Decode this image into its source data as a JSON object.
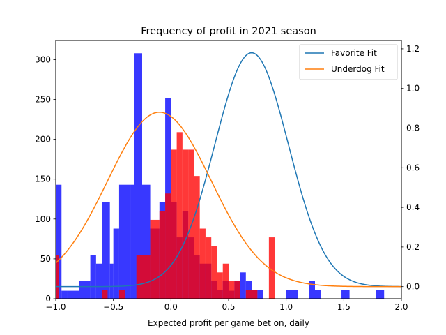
{
  "chart_data": {
    "type": "bar",
    "title": "Frequency of profit in 2021 season",
    "xlabel": "Expected profit per game bet on, daily",
    "ylabel": "",
    "xlim": [
      -1.0,
      2.0
    ],
    "ylim": [
      0,
      324
    ],
    "y2lim": [
      -0.061,
      1.242
    ],
    "x_ticks": [
      "−1.0",
      "−0.5",
      "0.0",
      "0.5",
      "1.0",
      "1.5",
      "2.0"
    ],
    "y_ticks": [
      "0",
      "50",
      "100",
      "150",
      "200",
      "250",
      "300"
    ],
    "y2_ticks": [
      "0.0",
      "0.2",
      "0.4",
      "0.6",
      "0.8",
      "1.0",
      "1.2"
    ],
    "x_tick_values": [
      -1.0,
      -0.5,
      0.0,
      0.5,
      1.0,
      1.5,
      2.0
    ],
    "y_tick_values": [
      0,
      50,
      100,
      150,
      200,
      250,
      300
    ],
    "y2_tick_values": [
      0.0,
      0.2,
      0.4,
      0.6,
      0.8,
      1.0,
      1.2
    ],
    "colors": {
      "favorite_hist": "#0000ff",
      "underdog_hist": "#ff0000",
      "favorite_fit": "#1f77b4",
      "underdog_fit": "#ff7f0e"
    },
    "legend_position": "top-right",
    "histograms": [
      {
        "bins": [
          [
            -1.0,
            -0.95,
            143
          ],
          [
            -0.95,
            -0.9,
            10
          ],
          [
            -0.9,
            -0.8,
            10
          ],
          [
            -0.8,
            -0.7,
            22
          ],
          [
            -0.7,
            -0.65,
            55
          ],
          [
            -0.65,
            -0.6,
            44
          ],
          [
            -0.6,
            -0.53,
            121
          ],
          [
            -0.53,
            -0.5,
            44
          ],
          [
            -0.5,
            -0.45,
            88
          ],
          [
            -0.45,
            -0.35,
            143
          ],
          [
            -0.35,
            -0.32,
            143
          ],
          [
            -0.32,
            -0.25,
            308
          ],
          [
            -0.25,
            -0.18,
            143
          ],
          [
            -0.18,
            -0.1,
            88
          ],
          [
            -0.1,
            -0.05,
            121
          ],
          [
            -0.05,
            0.0,
            252
          ],
          [
            0.0,
            0.05,
            121
          ],
          [
            0.05,
            0.1,
            77
          ],
          [
            0.1,
            0.15,
            110
          ],
          [
            0.15,
            0.2,
            77
          ],
          [
            0.2,
            0.25,
            55
          ],
          [
            0.25,
            0.35,
            44
          ],
          [
            0.35,
            0.4,
            22
          ],
          [
            0.4,
            0.45,
            11
          ],
          [
            0.45,
            0.5,
            22
          ],
          [
            0.5,
            0.55,
            10
          ],
          [
            0.55,
            0.6,
            22
          ],
          [
            0.6,
            0.65,
            33
          ],
          [
            0.65,
            0.7,
            22
          ],
          [
            0.7,
            0.75,
            11
          ],
          [
            0.75,
            0.8,
            11
          ],
          [
            1.0,
            1.1,
            11
          ],
          [
            1.2,
            1.25,
            22
          ],
          [
            1.25,
            1.3,
            11
          ],
          [
            1.48,
            1.55,
            11
          ],
          [
            1.78,
            1.85,
            11
          ]
        ]
      },
      {
        "bins": [
          [
            -1.0,
            -0.97,
            55
          ],
          [
            -0.6,
            -0.55,
            11
          ],
          [
            -0.45,
            -0.4,
            11
          ],
          [
            -0.3,
            -0.18,
            55
          ],
          [
            -0.18,
            -0.1,
            99
          ],
          [
            -0.1,
            -0.05,
            110
          ],
          [
            -0.05,
            0.0,
            132
          ],
          [
            0.0,
            0.05,
            187
          ],
          [
            0.05,
            0.1,
            209
          ],
          [
            0.1,
            0.15,
            187
          ],
          [
            0.15,
            0.2,
            187
          ],
          [
            0.2,
            0.25,
            154
          ],
          [
            0.25,
            0.3,
            88
          ],
          [
            0.3,
            0.35,
            77
          ],
          [
            0.35,
            0.4,
            66
          ],
          [
            0.4,
            0.45,
            33
          ],
          [
            0.45,
            0.5,
            44
          ],
          [
            0.5,
            0.55,
            22
          ],
          [
            0.55,
            0.6,
            22
          ],
          [
            0.65,
            0.7,
            11
          ],
          [
            0.7,
            0.75,
            11
          ],
          [
            0.85,
            0.9,
            77
          ]
        ]
      }
    ],
    "series": [
      {
        "name": "Favorite Fit",
        "mean": 0.7,
        "std": 0.32,
        "amplitude": 1.18
      },
      {
        "name": "Underdog Fit",
        "mean": -0.1,
        "std": 0.45,
        "amplitude": 0.88
      }
    ]
  }
}
